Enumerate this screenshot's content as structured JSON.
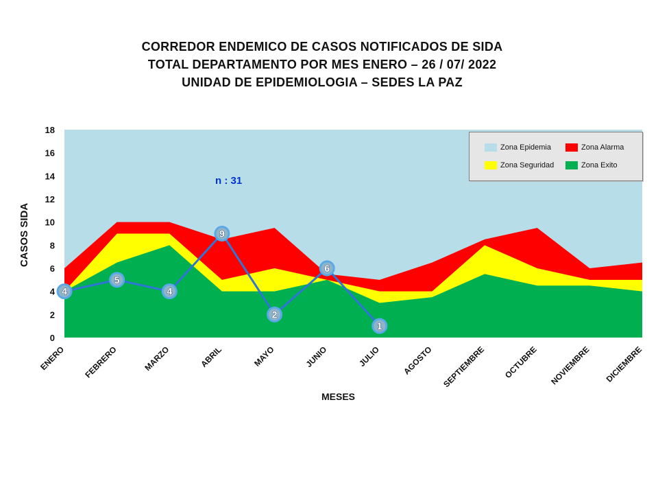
{
  "titles": [
    "CORREDOR ENDEMICO  DE CASOS NOTIFICADOS  DE SIDA",
    "TOTAL DEPARTAMENTO  POR MES ENERO – 26 / 07/ 2022",
    "UNIDAD  DE EPIDEMIOLOGIA  – SEDES LA PAZ"
  ],
  "annotation": "n : 31",
  "colors": {
    "epidemia": "#b7dde8",
    "alarma": "#ff0000",
    "seguridad": "#ffff00",
    "exito": "#00b050",
    "cases_line": "#2e75d6",
    "marker_fill": "#8fb4c8",
    "marker_stroke": "#5aa9e6",
    "annotation": "#0033cc"
  },
  "legend": {
    "epidemia": "Zona Epidemia",
    "alarma": "Zona Alarma",
    "seguridad": "Zona Seguridad",
    "exito": "Zona Exito"
  },
  "chart_data": {
    "type": "area",
    "xlabel": "MESES",
    "ylabel": "CASOS SIDA",
    "ylim": [
      0,
      18
    ],
    "yticks": [
      0,
      2,
      4,
      6,
      8,
      10,
      12,
      14,
      16,
      18
    ],
    "categories": [
      "ENERO",
      "FEBRERO",
      "MARZO",
      "ABRIL",
      "MAYO",
      "JUNIO",
      "JULIO",
      "AGOSTO",
      "SEPTIEMBRE",
      "OCTUBRE",
      "NOVIEMBRE",
      "DICIEMBRE"
    ],
    "legend_position": "top-right",
    "zones": {
      "exito": [
        4,
        6.5,
        8,
        4,
        4,
        5,
        3,
        3.5,
        5.5,
        4.5,
        4.5,
        4
      ],
      "seguridad": [
        4,
        9,
        9,
        5,
        6,
        5,
        4,
        4,
        8,
        6,
        5,
        5
      ],
      "alarma": [
        6,
        10,
        10,
        8.5,
        9.5,
        5.5,
        5,
        6.5,
        8.5,
        9.5,
        6,
        6.5
      ],
      "epidemia": 18
    },
    "cases": {
      "values": [
        4,
        5,
        4,
        9,
        2,
        6,
        1
      ]
    }
  }
}
